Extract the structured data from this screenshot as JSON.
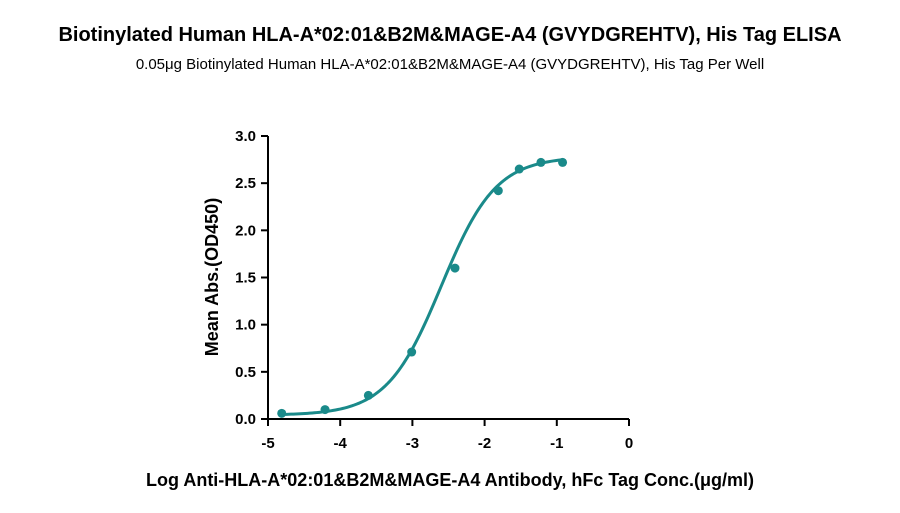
{
  "title": "Biotinylated Human HLA-A*02:01&B2M&MAGE-A4 (GVYDGREHTV), His Tag ELISA",
  "subtitle": "0.05μg Biotinylated Human HLA-A*02:01&B2M&MAGE-A4 (GVYDGREHTV), His Tag Per Well",
  "colors": {
    "series": "#1a8a8a",
    "axis": "#000000"
  },
  "chart_data": {
    "type": "scatter",
    "title": "Biotinylated Human HLA-A*02:01&B2M&MAGE-A4 (GVYDGREHTV), His Tag ELISA",
    "subtitle": "0.05μg Biotinylated Human HLA-A*02:01&B2M&MAGE-A4 (GVYDGREHTV), His Tag Per Well",
    "xlabel": "Log Anti-HLA-A*02:01&B2M&MAGE-A4 Antibody, hFc  Tag Conc.(μg/ml)",
    "ylabel": "Mean Abs.(OD450)",
    "xlim": [
      -5,
      0
    ],
    "ylim": [
      0,
      3.0
    ],
    "xticks": [
      -5,
      -4,
      -3,
      -2,
      -1,
      0
    ],
    "yticks": [
      0,
      0.5,
      1.0,
      1.5,
      2.0,
      2.5,
      3.0
    ],
    "xtick_labels": [
      "-5",
      "-4",
      "-3",
      "-2",
      "-1",
      "0"
    ],
    "ytick_labels": [
      "0.0",
      "0.5",
      "1.0",
      "1.5",
      "2.0",
      "2.5",
      "3.0"
    ],
    "grid": false,
    "legend": "none",
    "series": [
      {
        "x": [
          -4.81,
          -4.21,
          -3.61,
          -3.01,
          -2.41,
          -1.81,
          -1.52,
          -1.22,
          -0.92
        ],
        "y": [
          0.06,
          0.1,
          0.25,
          0.71,
          1.6,
          2.42,
          2.65,
          2.72,
          2.72
        ],
        "fit": "4PL sigmoid"
      }
    ],
    "fit_curve": {
      "bottom": 0.04,
      "top": 2.78,
      "log_ec50": -2.6,
      "hill": 1.15
    }
  }
}
